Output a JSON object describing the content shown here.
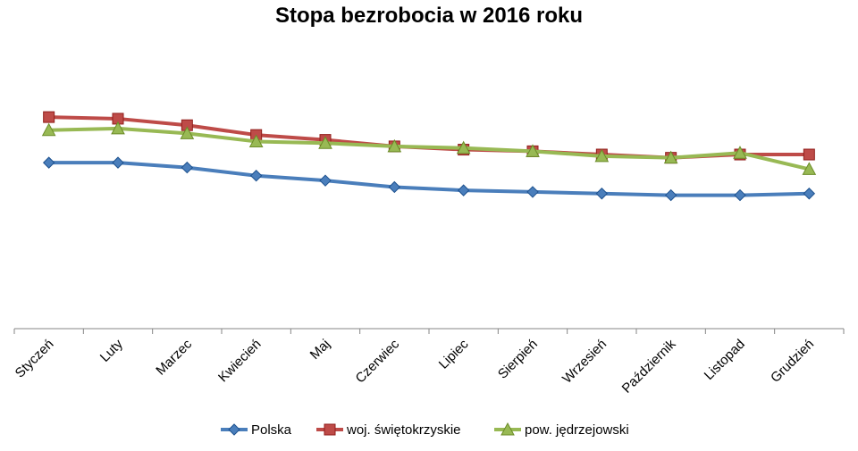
{
  "chart_data": {
    "type": "line",
    "title": "Stopa bezrobocia w 2016 roku",
    "xlabel": "",
    "ylabel": "",
    "categories": [
      "Styczeń",
      "Luty",
      "Marzec",
      "Kwiecień",
      "Maj",
      "Czerwiec",
      "Lipiec",
      "Sierpień",
      "Wrzesień",
      "Październik",
      "Listopad",
      "Grudzień"
    ],
    "ylim": [
      0,
      18
    ],
    "grid": false,
    "legend_position": "bottom",
    "series": [
      {
        "name": "Polska",
        "color": "#4A7EBB",
        "marker": "diamond",
        "values": [
          10.2,
          10.2,
          9.9,
          9.4,
          9.1,
          8.7,
          8.5,
          8.4,
          8.3,
          8.2,
          8.2,
          8.3
        ]
      },
      {
        "name": "woj. świętokrzyskie",
        "color": "#BE4B48",
        "marker": "square",
        "values": [
          13.0,
          12.9,
          12.5,
          11.9,
          11.6,
          11.2,
          11.0,
          10.9,
          10.7,
          10.5,
          10.7,
          10.7
        ]
      },
      {
        "name": "pow. jędrzejowski",
        "color": "#98B954",
        "marker": "triangle",
        "values": [
          12.2,
          12.3,
          12.0,
          11.5,
          11.4,
          11.2,
          11.1,
          10.9,
          10.6,
          10.5,
          10.8,
          9.8
        ]
      }
    ]
  }
}
